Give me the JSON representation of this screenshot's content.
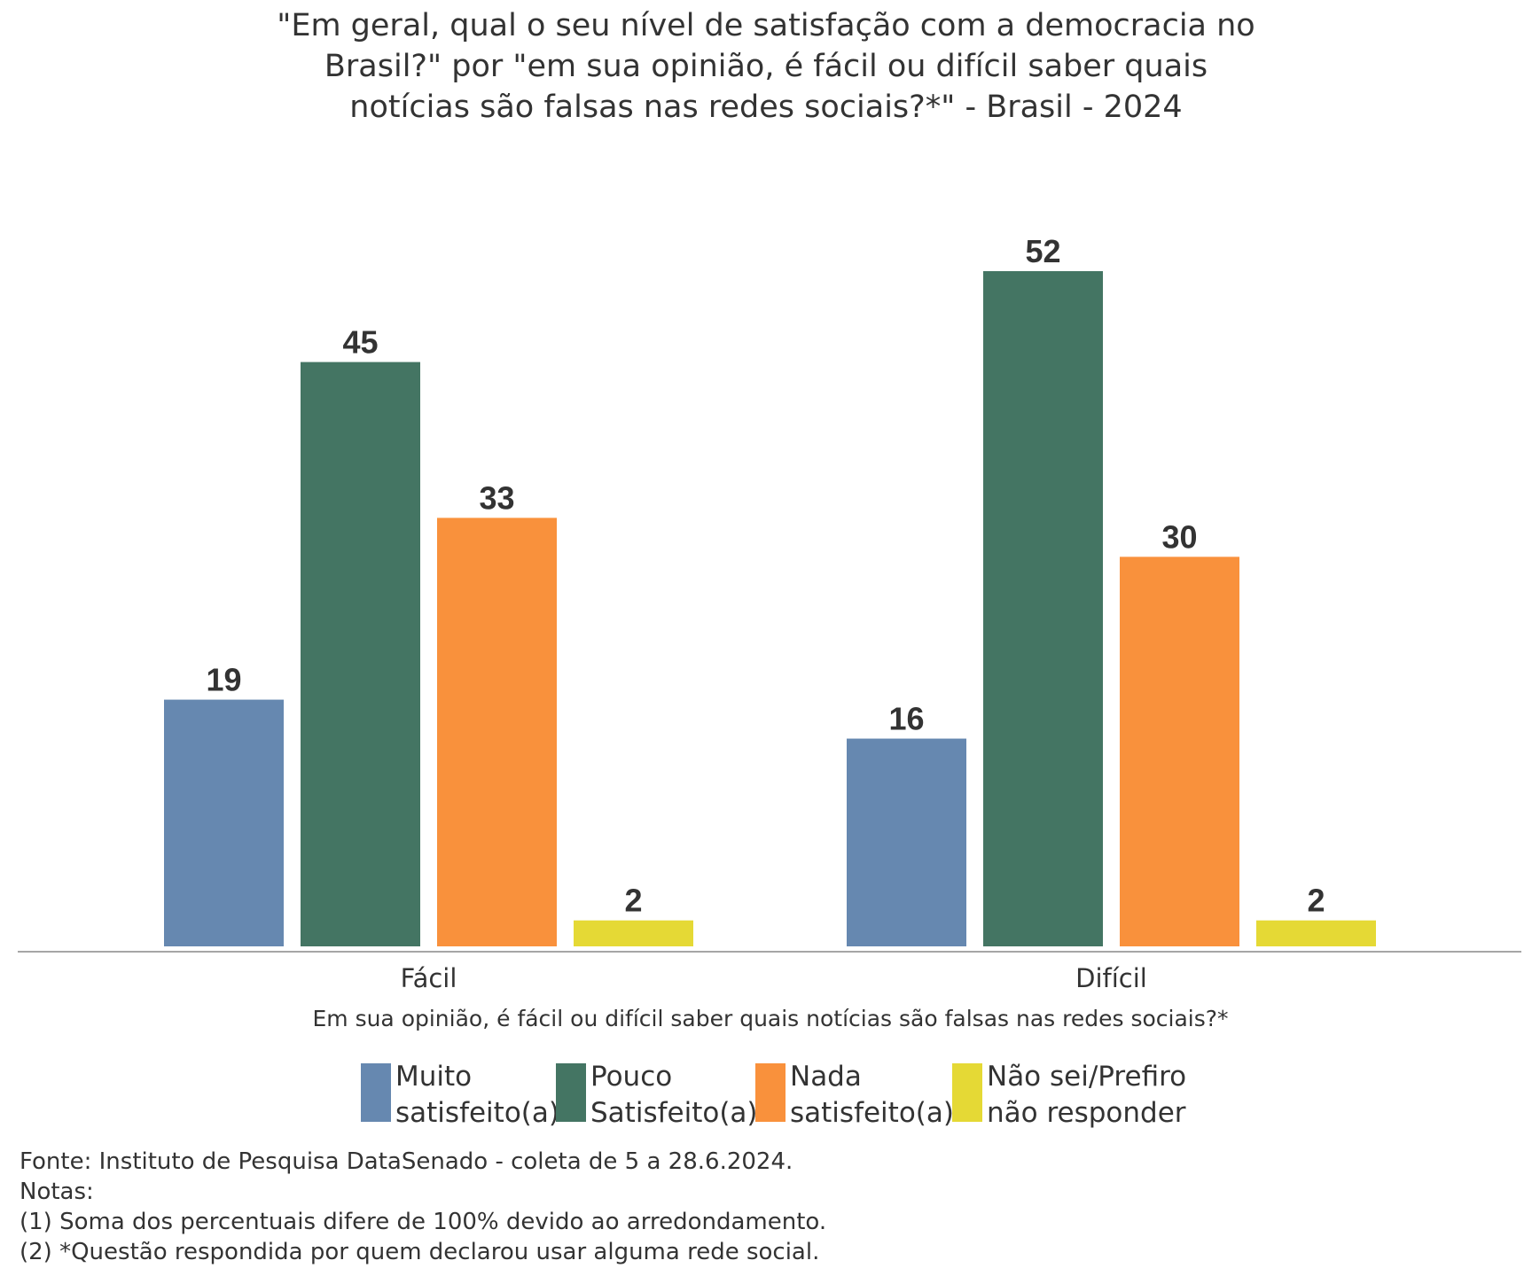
{
  "chart_data": {
    "type": "bar",
    "title": [
      "\"Em geral, qual o seu nível de satisfação com a democracia no",
      "Brasil?\" por \"em sua opinião, é fácil ou difícil saber quais",
      "notícias são falsas nas redes sociais?*\" - Brasil - 2024"
    ],
    "xlabel": "Em sua opinião, é fácil ou difícil saber quais notícias são falsas nas redes sociais?*",
    "ylabel": "",
    "categories": [
      "Fácil",
      "Difícil"
    ],
    "ylim": [
      0,
      55
    ],
    "grid": false,
    "legend_position": "bottom",
    "series": [
      {
        "name": "Muito satisfeito(a)",
        "legend_lines": [
          "Muito",
          "satisfeito(a)"
        ],
        "color": "#6688B0",
        "values": [
          19,
          16
        ]
      },
      {
        "name": "Pouco Satisfeito(a)",
        "legend_lines": [
          "Pouco",
          "Satisfeito(a)"
        ],
        "color": "#447563",
        "values": [
          45,
          52
        ]
      },
      {
        "name": "Nada satisfeito(a)",
        "legend_lines": [
          "Nada",
          "satisfeito(a)"
        ],
        "color": "#F9913C",
        "values": [
          33,
          30
        ]
      },
      {
        "name": "Não sei/Prefiro não responder",
        "legend_lines": [
          "Não sei/Prefiro",
          "não responder"
        ],
        "color": "#E5D935",
        "values": [
          2,
          2
        ]
      }
    ]
  },
  "notes": [
    "Fonte: Instituto de Pesquisa DataSenado - coleta de 5 a 28.6.2024.",
    "Notas:",
    "(1) Soma dos percentuais difere de 100% devido ao arredondamento.",
    "(2) *Questão respondida por quem declarou usar alguma rede social."
  ]
}
